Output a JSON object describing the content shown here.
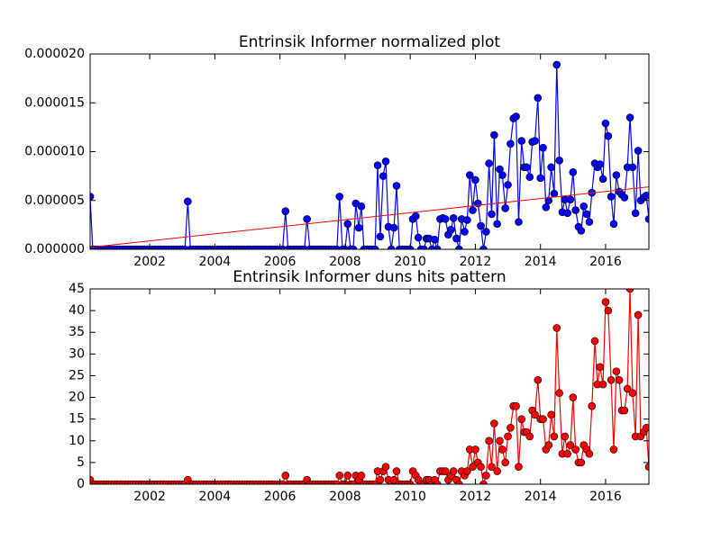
{
  "chart_data": [
    {
      "type": "line",
      "title": "Entrinsik Informer normalized plot",
      "x": [
        2000.17,
        2000.25,
        2000.33,
        2000.42,
        2000.5,
        2000.58,
        2000.67,
        2000.75,
        2000.83,
        2000.92,
        2001,
        2001.08,
        2001.17,
        2001.25,
        2001.33,
        2001.42,
        2001.5,
        2001.58,
        2001.67,
        2001.75,
        2001.83,
        2001.92,
        2002,
        2002.08,
        2002.17,
        2002.25,
        2002.33,
        2002.42,
        2002.5,
        2002.58,
        2002.67,
        2002.75,
        2002.83,
        2002.92,
        2003,
        2003.08,
        2003.17,
        2003.25,
        2003.33,
        2003.42,
        2003.5,
        2003.58,
        2003.67,
        2003.75,
        2003.83,
        2003.92,
        2004,
        2004.08,
        2004.17,
        2004.25,
        2004.33,
        2004.42,
        2004.5,
        2004.58,
        2004.67,
        2004.75,
        2004.83,
        2004.92,
        2005,
        2005.08,
        2005.17,
        2005.25,
        2005.33,
        2005.42,
        2005.5,
        2005.58,
        2005.67,
        2005.75,
        2005.83,
        2005.92,
        2006,
        2006.08,
        2006.17,
        2006.25,
        2006.33,
        2006.42,
        2006.5,
        2006.58,
        2006.67,
        2006.75,
        2006.83,
        2006.92,
        2007,
        2007.08,
        2007.17,
        2007.25,
        2007.33,
        2007.42,
        2007.5,
        2007.58,
        2007.67,
        2007.75,
        2007.83,
        2007.92,
        2008,
        2008.08,
        2008.17,
        2008.25,
        2008.33,
        2008.42,
        2008.5,
        2008.58,
        2008.67,
        2008.75,
        2008.83,
        2008.92,
        2009,
        2009.08,
        2009.17,
        2009.25,
        2009.33,
        2009.42,
        2009.5,
        2009.58,
        2009.67,
        2009.75,
        2009.83,
        2009.92,
        2010,
        2010.08,
        2010.17,
        2010.25,
        2010.33,
        2010.42,
        2010.5,
        2010.58,
        2010.67,
        2010.75,
        2010.83,
        2010.92,
        2011,
        2011.08,
        2011.17,
        2011.25,
        2011.33,
        2011.42,
        2011.5,
        2011.58,
        2011.67,
        2011.75,
        2011.83,
        2011.92,
        2012,
        2012.08,
        2012.17,
        2012.25,
        2012.33,
        2012.42,
        2012.5,
        2012.58,
        2012.67,
        2012.75,
        2012.83,
        2012.92,
        2013,
        2013.08,
        2013.17,
        2013.25,
        2013.33,
        2013.42,
        2013.5,
        2013.58,
        2013.67,
        2013.75,
        2013.83,
        2013.92,
        2014,
        2014.08,
        2014.17,
        2014.25,
        2014.33,
        2014.42,
        2014.5,
        2014.58,
        2014.67,
        2014.75,
        2014.83,
        2014.92,
        2015,
        2015.08,
        2015.17,
        2015.25,
        2015.33,
        2015.42,
        2015.5,
        2015.58,
        2015.67,
        2015.75,
        2015.83,
        2015.92,
        2016,
        2016.08,
        2016.17,
        2016.25,
        2016.33,
        2016.42,
        2016.5,
        2016.58,
        2016.67,
        2016.75,
        2016.83,
        2016.92,
        2017,
        2017.08,
        2017.17,
        2017.25,
        2017.33
      ],
      "series": [
        {
          "color": "#0000ff",
          "values": [
            5.4e-06,
            0,
            0,
            0,
            0,
            0,
            0,
            0,
            0,
            0,
            0,
            0,
            0,
            0,
            0,
            0,
            0,
            0,
            0,
            0,
            0,
            0,
            0,
            0,
            0,
            0,
            0,
            0,
            0,
            0,
            0,
            0,
            0,
            0,
            0,
            0,
            4.9e-06,
            0,
            0,
            0,
            0,
            0,
            0,
            0,
            0,
            0,
            0,
            0,
            0,
            0,
            0,
            0,
            0,
            0,
            0,
            0,
            0,
            0,
            0,
            0,
            0,
            0,
            0,
            0,
            0,
            0,
            0,
            0,
            0,
            0,
            0,
            0,
            3.9e-06,
            0,
            0,
            0,
            0,
            0,
            0,
            0,
            3.1e-06,
            0,
            0,
            0,
            0,
            0,
            0,
            0,
            0,
            0,
            0,
            0,
            5.4e-06,
            0,
            0,
            2.6e-06,
            0,
            0,
            4.7e-06,
            2.2e-06,
            4.4e-06,
            0,
            0,
            0,
            0,
            0,
            8.6e-06,
            1.3e-06,
            7.5e-06,
            9e-06,
            2.3e-06,
            0,
            2.2e-06,
            6.5e-06,
            0,
            0,
            0,
            0,
            0,
            3.1e-06,
            3.4e-06,
            1.2e-06,
            0,
            0,
            1.1e-06,
            1.1e-06,
            0,
            1e-06,
            0,
            3.1e-06,
            3.2e-06,
            3.1e-06,
            1.5e-06,
            2e-06,
            3.2e-06,
            1.1e-06,
            0,
            3.1e-06,
            1.8e-06,
            3e-06,
            7.6e-06,
            4e-06,
            7.1e-06,
            4.7e-06,
            2.4e-06,
            0,
            1.8e-06,
            8.8e-06,
            3.6e-06,
            1.17e-05,
            2.6e-06,
            8.2e-06,
            7.6e-06,
            4.2e-06,
            6.6e-06,
            1.08e-05,
            1.34e-05,
            1.36e-05,
            2.8e-06,
            1.11e-05,
            8.4e-06,
            8.4e-06,
            7.4e-06,
            1.1e-05,
            1.11e-05,
            1.55e-05,
            7.3e-06,
            1.04e-05,
            4.3e-06,
            5e-06,
            8.4e-06,
            5.7e-06,
            1.89e-05,
            9.1e-06,
            3.8e-06,
            5.1e-06,
            3.7e-06,
            5.1e-06,
            7.9e-06,
            4e-06,
            2.3e-06,
            1.9e-06,
            4.4e-06,
            3.6e-06,
            2.8e-06,
            5.8e-06,
            8.8e-06,
            8.4e-06,
            8.7e-06,
            7.2e-06,
            1.29e-05,
            1.16e-05,
            5.4e-06,
            2.6e-06,
            7.6e-06,
            5.9e-06,
            5.6e-06,
            5.3e-06,
            8.4e-06,
            1.35e-05,
            8.4e-06,
            3.7e-06,
            1.01e-05,
            5e-06,
            5.3e-06,
            5.5e-06,
            3.1e-06
          ]
        }
      ],
      "trend": {
        "color": "#ff0000",
        "x": [
          2000.17,
          2017.33
        ],
        "values": [
          2e-07,
          6.4e-06
        ]
      },
      "xlim": [
        2000.17,
        2017.33
      ],
      "xticks": [
        2002,
        2004,
        2006,
        2008,
        2010,
        2012,
        2014,
        2016
      ],
      "ylim": [
        0,
        2e-05
      ],
      "yticks": [
        {
          "value": 0,
          "label": "0.000000"
        },
        {
          "value": 5e-06,
          "label": "0.000005"
        },
        {
          "value": 1e-05,
          "label": "0.000010"
        },
        {
          "value": 1.5e-05,
          "label": "0.000015"
        },
        {
          "value": 2e-05,
          "label": "0.000020"
        }
      ]
    },
    {
      "type": "line",
      "title": "Entrinsik Informer duns hits pattern",
      "x": [
        2000.17,
        2000.25,
        2000.33,
        2000.42,
        2000.5,
        2000.58,
        2000.67,
        2000.75,
        2000.83,
        2000.92,
        2001,
        2001.08,
        2001.17,
        2001.25,
        2001.33,
        2001.42,
        2001.5,
        2001.58,
        2001.67,
        2001.75,
        2001.83,
        2001.92,
        2002,
        2002.08,
        2002.17,
        2002.25,
        2002.33,
        2002.42,
        2002.5,
        2002.58,
        2002.67,
        2002.75,
        2002.83,
        2002.92,
        2003,
        2003.08,
        2003.17,
        2003.25,
        2003.33,
        2003.42,
        2003.5,
        2003.58,
        2003.67,
        2003.75,
        2003.83,
        2003.92,
        2004,
        2004.08,
        2004.17,
        2004.25,
        2004.33,
        2004.42,
        2004.5,
        2004.58,
        2004.67,
        2004.75,
        2004.83,
        2004.92,
        2005,
        2005.08,
        2005.17,
        2005.25,
        2005.33,
        2005.42,
        2005.5,
        2005.58,
        2005.67,
        2005.75,
        2005.83,
        2005.92,
        2006,
        2006.08,
        2006.17,
        2006.25,
        2006.33,
        2006.42,
        2006.5,
        2006.58,
        2006.67,
        2006.75,
        2006.83,
        2006.92,
        2007,
        2007.08,
        2007.17,
        2007.25,
        2007.33,
        2007.42,
        2007.5,
        2007.58,
        2007.67,
        2007.75,
        2007.83,
        2007.92,
        2008,
        2008.08,
        2008.17,
        2008.25,
        2008.33,
        2008.42,
        2008.5,
        2008.58,
        2008.67,
        2008.75,
        2008.83,
        2008.92,
        2009,
        2009.08,
        2009.17,
        2009.25,
        2009.33,
        2009.42,
        2009.5,
        2009.58,
        2009.67,
        2009.75,
        2009.83,
        2009.92,
        2010,
        2010.08,
        2010.17,
        2010.25,
        2010.33,
        2010.42,
        2010.5,
        2010.58,
        2010.67,
        2010.75,
        2010.83,
        2010.92,
        2011,
        2011.08,
        2011.17,
        2011.25,
        2011.33,
        2011.42,
        2011.5,
        2011.58,
        2011.67,
        2011.75,
        2011.83,
        2011.92,
        2012,
        2012.08,
        2012.17,
        2012.25,
        2012.33,
        2012.42,
        2012.5,
        2012.58,
        2012.67,
        2012.75,
        2012.83,
        2012.92,
        2013,
        2013.08,
        2013.17,
        2013.25,
        2013.33,
        2013.42,
        2013.5,
        2013.58,
        2013.67,
        2013.75,
        2013.83,
        2013.92,
        2014,
        2014.08,
        2014.17,
        2014.25,
        2014.33,
        2014.42,
        2014.5,
        2014.58,
        2014.67,
        2014.75,
        2014.83,
        2014.92,
        2015,
        2015.08,
        2015.17,
        2015.25,
        2015.33,
        2015.42,
        2015.5,
        2015.58,
        2015.67,
        2015.75,
        2015.83,
        2015.92,
        2016,
        2016.08,
        2016.17,
        2016.25,
        2016.33,
        2016.42,
        2016.5,
        2016.58,
        2016.67,
        2016.75,
        2016.83,
        2016.92,
        2017,
        2017.08,
        2017.17,
        2017.25,
        2017.33
      ],
      "series": [
        {
          "color": "#ff0000",
          "values": [
            1,
            0,
            0,
            0,
            0,
            0,
            0,
            0,
            0,
            0,
            0,
            0,
            0,
            0,
            0,
            0,
            0,
            0,
            0,
            0,
            0,
            0,
            0,
            0,
            0,
            0,
            0,
            0,
            0,
            0,
            0,
            0,
            0,
            0,
            0,
            0,
            1,
            0,
            0,
            0,
            0,
            0,
            0,
            0,
            0,
            0,
            0,
            0,
            0,
            0,
            0,
            0,
            0,
            0,
            0,
            0,
            0,
            0,
            0,
            0,
            0,
            0,
            0,
            0,
            0,
            0,
            0,
            0,
            0,
            0,
            0,
            0,
            2,
            0,
            0,
            0,
            0,
            0,
            0,
            0,
            1,
            0,
            0,
            0,
            0,
            0,
            0,
            0,
            0,
            0,
            0,
            0,
            2,
            0,
            0,
            2,
            0,
            0,
            2,
            1,
            2,
            0,
            0,
            0,
            0,
            0,
            3,
            1,
            3,
            4,
            1,
            0,
            1,
            3,
            0,
            0,
            0,
            0,
            0,
            3,
            2,
            1,
            0,
            0,
            1,
            1,
            0,
            1,
            0,
            3,
            3,
            3,
            1,
            2,
            3,
            1,
            0,
            3,
            2,
            3,
            8,
            4,
            8,
            5,
            4,
            0,
            2,
            10,
            4,
            14,
            3,
            10,
            8,
            5,
            11,
            13,
            18,
            18,
            4,
            15,
            12,
            12,
            11,
            17,
            16,
            24,
            15,
            15,
            8,
            9,
            16,
            11,
            36,
            21,
            7,
            11,
            7,
            9,
            20,
            8,
            5,
            5,
            9,
            8,
            7,
            18,
            33,
            23,
            27,
            23,
            42,
            40,
            24,
            8,
            26,
            24,
            17,
            17,
            22,
            45,
            21,
            11,
            39,
            11,
            12,
            13,
            4
          ]
        }
      ],
      "xlim": [
        2000.17,
        2017.33
      ],
      "xticks": [
        2002,
        2004,
        2006,
        2008,
        2010,
        2012,
        2014,
        2016
      ],
      "ylim": [
        0,
        45
      ],
      "yticks": [
        0,
        5,
        10,
        15,
        20,
        25,
        30,
        35,
        40,
        45
      ]
    }
  ]
}
